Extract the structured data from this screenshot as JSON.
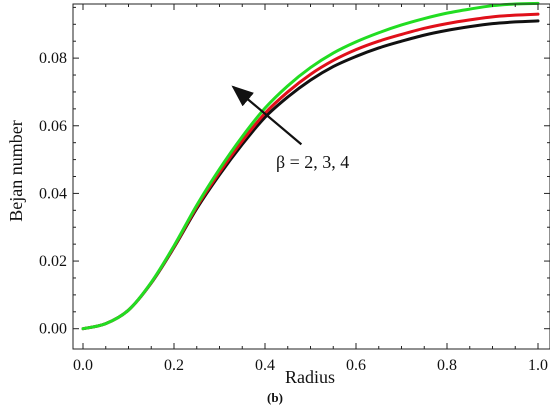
{
  "chart_data": {
    "type": "line",
    "xlabel": "Radius",
    "ylabel": "Bejan number",
    "panel_label": "(b)",
    "xlim": [
      0.0,
      1.0
    ],
    "ylim": [
      -0.006,
      0.096
    ],
    "x_ticks": [
      "0.0",
      "0.2",
      "0.4",
      "0.6",
      "0.8",
      "1.0"
    ],
    "y_ticks": [
      "0.00",
      "0.02",
      "0.04",
      "0.06",
      "0.08"
    ],
    "grid": false,
    "annotation": {
      "text": "β = 2, 3, 4",
      "arrow_from": [
        0.48,
        0.0545
      ],
      "arrow_to": [
        0.33,
        0.0715
      ]
    },
    "x": [
      0.0,
      0.05,
      0.1,
      0.15,
      0.2,
      0.25,
      0.3,
      0.35,
      0.4,
      0.45,
      0.5,
      0.55,
      0.6,
      0.65,
      0.7,
      0.75,
      0.8,
      0.85,
      0.9,
      0.95,
      1.0
    ],
    "series": [
      {
        "name": "",
        "color": "#111111",
        "values": [
          0.0,
          0.0015,
          0.0055,
          0.0135,
          0.024,
          0.0355,
          0.0455,
          0.0545,
          0.0625,
          0.0685,
          0.0735,
          0.0775,
          0.0805,
          0.083,
          0.085,
          0.0868,
          0.0882,
          0.0893,
          0.0902,
          0.0907,
          0.091
        ]
      },
      {
        "name": "",
        "color": "#e0101a",
        "values": [
          0.0,
          0.0015,
          0.0055,
          0.0136,
          0.0242,
          0.036,
          0.0462,
          0.0555,
          0.0637,
          0.07,
          0.0752,
          0.0793,
          0.0825,
          0.085,
          0.087,
          0.0888,
          0.0902,
          0.0913,
          0.0922,
          0.0927,
          0.093
        ]
      },
      {
        "name": "",
        "color": "#22dd22",
        "values": [
          0.0,
          0.0015,
          0.0055,
          0.0137,
          0.0245,
          0.0365,
          0.0472,
          0.0568,
          0.0652,
          0.0718,
          0.0772,
          0.0815,
          0.0848,
          0.0875,
          0.0898,
          0.0917,
          0.0933,
          0.0945,
          0.0955,
          0.096,
          0.0962
        ]
      }
    ]
  }
}
